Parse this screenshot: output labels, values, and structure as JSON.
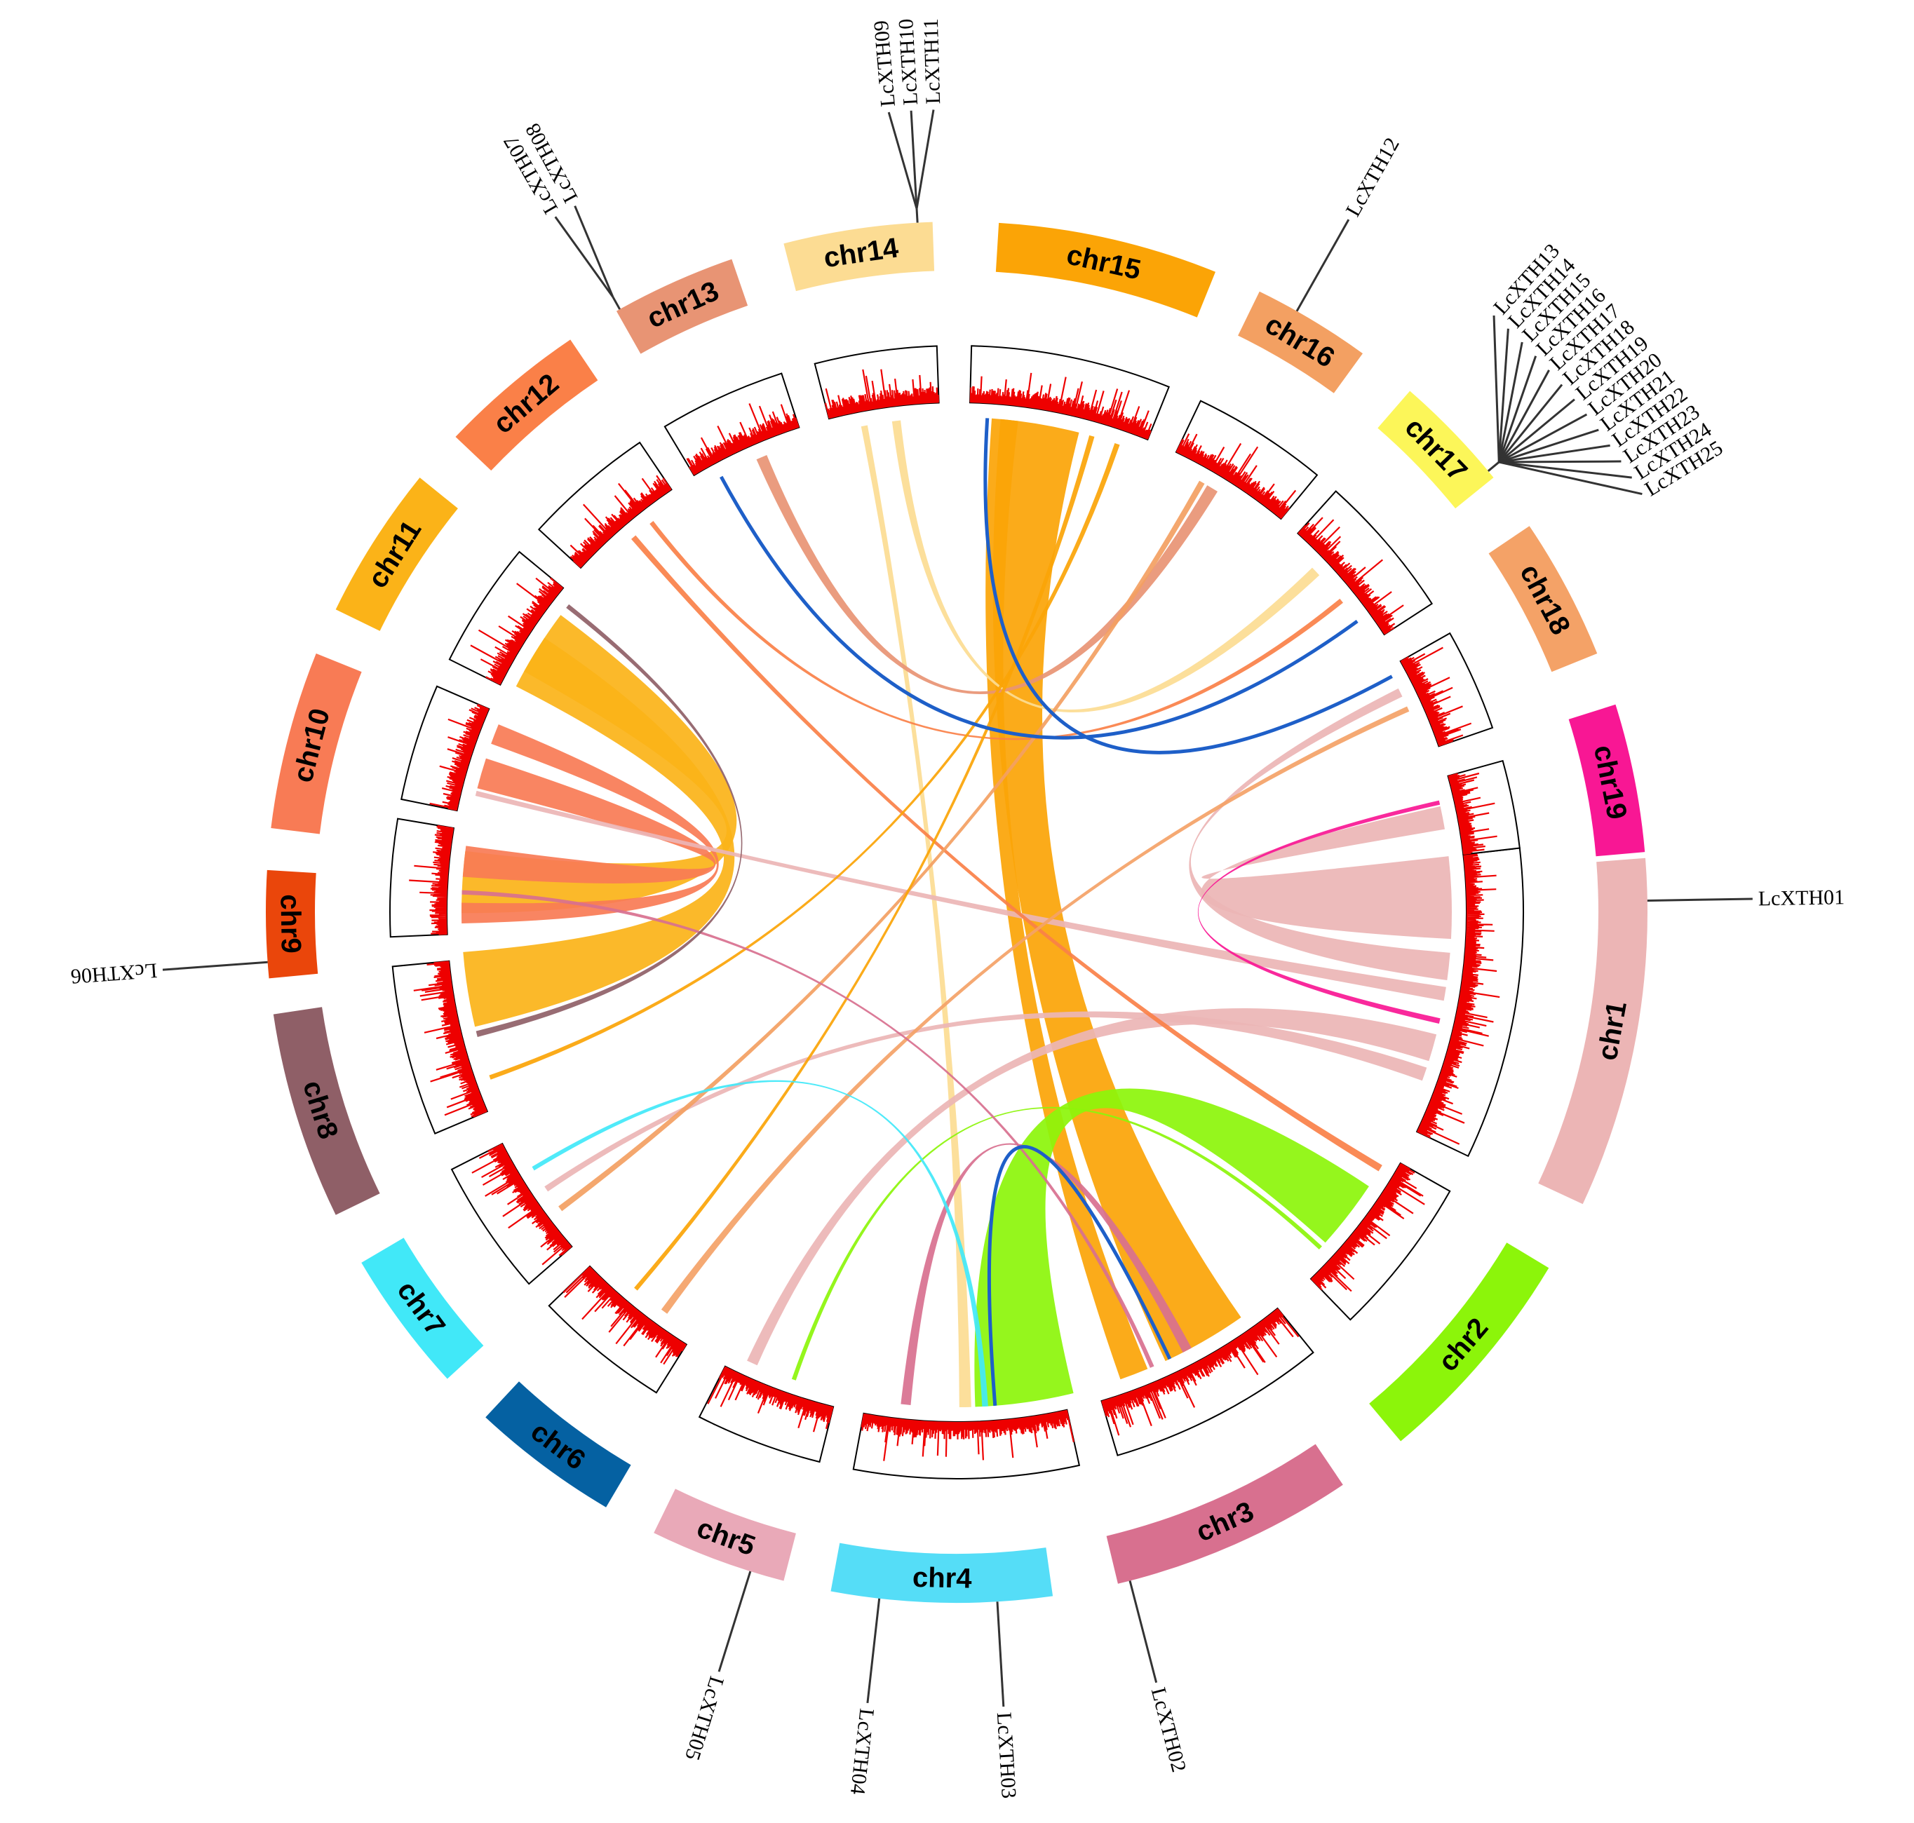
{
  "chromosomes": [
    {
      "name": "chr1",
      "color": "#ecb5b5"
    },
    {
      "name": "chr2",
      "color": "#8cf50a"
    },
    {
      "name": "chr3",
      "color": "#d8708f"
    },
    {
      "name": "chr4",
      "color": "#55ddf7"
    },
    {
      "name": "chr5",
      "color": "#e9a9b8"
    },
    {
      "name": "chr6",
      "color": "#0561a2"
    },
    {
      "name": "chr7",
      "color": "#41e8f8"
    },
    {
      "name": "chr8",
      "color": "#8f5f67"
    },
    {
      "name": "chr9",
      "color": "#ea460b"
    },
    {
      "name": "chr10",
      "color": "#f87b55"
    },
    {
      "name": "chr11",
      "color": "#fbb318"
    },
    {
      "name": "chr12",
      "color": "#fa8048"
    },
    {
      "name": "chr13",
      "color": "#e89474"
    },
    {
      "name": "chr14",
      "color": "#fcdc93"
    },
    {
      "name": "chr15",
      "color": "#fba406"
    },
    {
      "name": "chr16",
      "color": "#f3a062"
    },
    {
      "name": "chr17",
      "color": "#fcf659"
    },
    {
      "name": "chr18",
      "color": "#f4a267"
    },
    {
      "name": "chr19",
      "color": "#f81794"
    }
  ],
  "genes": [
    {
      "name": "LcXTH01",
      "chr": "chr1",
      "pos": 0.12
    },
    {
      "name": "LcXTH02",
      "chr": "chr3",
      "pos": 0.95
    },
    {
      "name": "LcXTH03",
      "chr": "chr4",
      "pos": 0.25
    },
    {
      "name": "LcXTH04",
      "chr": "chr4",
      "pos": 0.78
    },
    {
      "name": "LcXTH05",
      "chr": "chr5",
      "pos": 0.25
    },
    {
      "name": "LcXTH06",
      "chr": "chr9",
      "pos": 0.15
    },
    {
      "name": "LcXTH07",
      "chr": "chr13",
      "pos": 0.03
    },
    {
      "name": "LcXTH08",
      "chr": "chr13",
      "pos": 0.03
    },
    {
      "name": "LcXTH09",
      "chr": "chr14",
      "pos": 0.9
    },
    {
      "name": "LcXTH10",
      "chr": "chr14",
      "pos": 0.9
    },
    {
      "name": "LcXTH11",
      "chr": "chr14",
      "pos": 0.9
    },
    {
      "name": "LcXTH12",
      "chr": "chr16",
      "pos": 0.35
    },
    {
      "name": "LcXTH13",
      "chr": "chr17",
      "pos": 0.93
    },
    {
      "name": "LcXTH14",
      "chr": "chr17",
      "pos": 0.93
    },
    {
      "name": "LcXTH15",
      "chr": "chr17",
      "pos": 0.93
    },
    {
      "name": "LcXTH16",
      "chr": "chr17",
      "pos": 0.93
    },
    {
      "name": "LcXTH17",
      "chr": "chr17",
      "pos": 0.93
    },
    {
      "name": "LcXTH18",
      "chr": "chr17",
      "pos": 0.93
    },
    {
      "name": "LcXTH19",
      "chr": "chr17",
      "pos": 0.93
    },
    {
      "name": "LcXTH20",
      "chr": "chr17",
      "pos": 0.93
    },
    {
      "name": "LcXTH21",
      "chr": "chr17",
      "pos": 0.93
    },
    {
      "name": "LcXTH22",
      "chr": "chr17",
      "pos": 0.93
    },
    {
      "name": "LcXTH23",
      "chr": "chr17",
      "pos": 0.93
    },
    {
      "name": "LcXTH24",
      "chr": "chr17",
      "pos": 0.93
    },
    {
      "name": "LcXTH25",
      "chr": "chr17",
      "pos": 0.93
    }
  ],
  "links": [
    {
      "a": "chr11",
      "ap": 0.5,
      "b": "chr9",
      "bp": 0.5,
      "w": 0.6,
      "color": "#fbb318"
    },
    {
      "a": "chr11",
      "ap": 0.3,
      "b": "chr8",
      "bp": 0.8,
      "w": 0.5,
      "color": "#fbb318"
    },
    {
      "a": "chr10",
      "ap": 0.4,
      "b": "chr9",
      "bp": 0.7,
      "w": 0.3,
      "color": "#f87b55"
    },
    {
      "a": "chr10",
      "ap": 0.8,
      "b": "chr9",
      "bp": 0.2,
      "w": 0.2,
      "color": "#f87b55"
    },
    {
      "a": "chr15",
      "ap": 0.4,
      "b": "chr3",
      "bp": 0.4,
      "w": 0.45,
      "color": "#fba406"
    },
    {
      "a": "chr15",
      "ap": 0.2,
      "b": "chr3",
      "bp": 0.8,
      "w": 0.15,
      "color": "#fba406"
    },
    {
      "a": "chr14",
      "ap": 0.3,
      "b": "chr4",
      "bp": 0.5,
      "w": 0.06,
      "color": "#fcdc93"
    },
    {
      "a": "chr14",
      "ap": 0.6,
      "b": "chr17",
      "bp": 0.3,
      "w": 0.08,
      "color": "#fcdc93"
    },
    {
      "a": "chr1",
      "ap": 0.15,
      "b": "chr19",
      "bp": 0.5,
      "w": 0.3,
      "color": "#ecb5b5"
    },
    {
      "a": "chr1",
      "ap": 0.4,
      "b": "chr18",
      "bp": 0.3,
      "w": 0.1,
      "color": "#ecb5b5"
    },
    {
      "a": "chr1",
      "ap": 0.7,
      "b": "chr5",
      "bp": 0.8,
      "w": 0.1,
      "color": "#ecb5b5"
    },
    {
      "a": "chr1",
      "ap": 0.5,
      "b": "chr10",
      "bp": 0.2,
      "w": 0.05,
      "color": "#ecb5b5"
    },
    {
      "a": "chr1",
      "ap": 0.8,
      "b": "chr7",
      "bp": 0.5,
      "w": 0.05,
      "color": "#ecb5b5"
    },
    {
      "a": "chr2",
      "ap": 0.5,
      "b": "chr4",
      "bp": 0.2,
      "w": 0.5,
      "color": "#8cf50a"
    },
    {
      "a": "chr2",
      "ap": 0.8,
      "b": "chr5",
      "bp": 0.4,
      "w": 0.02,
      "color": "#8cf50a"
    },
    {
      "a": "chr12",
      "ap": 0.5,
      "b": "chr2",
      "bp": 0.1,
      "w": 0.05,
      "color": "#fa8048"
    },
    {
      "a": "chr12",
      "ap": 0.7,
      "b": "chr17",
      "bp": 0.6,
      "w": 0.04,
      "color": "#fa8048"
    },
    {
      "a": "chr13",
      "ap": 0.6,
      "b": "chr16",
      "bp": 0.4,
      "w": 0.1,
      "color": "#e89474"
    },
    {
      "a": "chr16",
      "ap": 0.3,
      "b": "chr7",
      "bp": 0.3,
      "w": 0.05,
      "color": "#f3a062"
    },
    {
      "a": "chr18",
      "ap": 0.5,
      "b": "chr6",
      "bp": 0.3,
      "w": 0.06,
      "color": "#f4a267"
    },
    {
      "a": "chr15",
      "ap": 0.7,
      "b": "chr6",
      "bp": 0.6,
      "w": 0.03,
      "color": "#fba406"
    },
    {
      "a": "chr15",
      "ap": 0.85,
      "b": "chr8",
      "bp": 0.2,
      "w": 0.03,
      "color": "#fba406"
    },
    {
      "a": "chr3",
      "ap": 0.7,
      "b": "chr9",
      "bp": 0.4,
      "w": 0.02,
      "color": "#d8708f"
    },
    {
      "a": "chr3",
      "ap": 0.5,
      "b": "chr4",
      "bp": 0.8,
      "w": 0.05,
      "color": "#d8708f"
    },
    {
      "a": "chr7",
      "ap": 0.7,
      "b": "chr4",
      "bp": 0.4,
      "w": 0.03,
      "color": "#41e8f8"
    },
    {
      "a": "chr8",
      "ap": 0.5,
      "b": "chr11",
      "bp": 0.9,
      "w": 0.04,
      "color": "#8f5f67"
    },
    {
      "a": "chr19",
      "ap": 0.3,
      "b": "chr1",
      "bp": 0.6,
      "w": 0.02,
      "color": "#f81794"
    },
    {
      "a": "chr13",
      "ap": 0.2,
      "b": "chr17",
      "bp": 0.8,
      "w": 0.01,
      "color": "#1e5fc8"
    },
    {
      "a": "chr15",
      "ap": 0.1,
      "b": "chr18",
      "bp": 0.1,
      "w": 0.01,
      "color": "#1e5fc8"
    },
    {
      "a": "chr4",
      "ap": 0.35,
      "b": "chr3",
      "bp": 0.6,
      "w": 0.01,
      "color": "#1e5fc8"
    }
  ]
}
